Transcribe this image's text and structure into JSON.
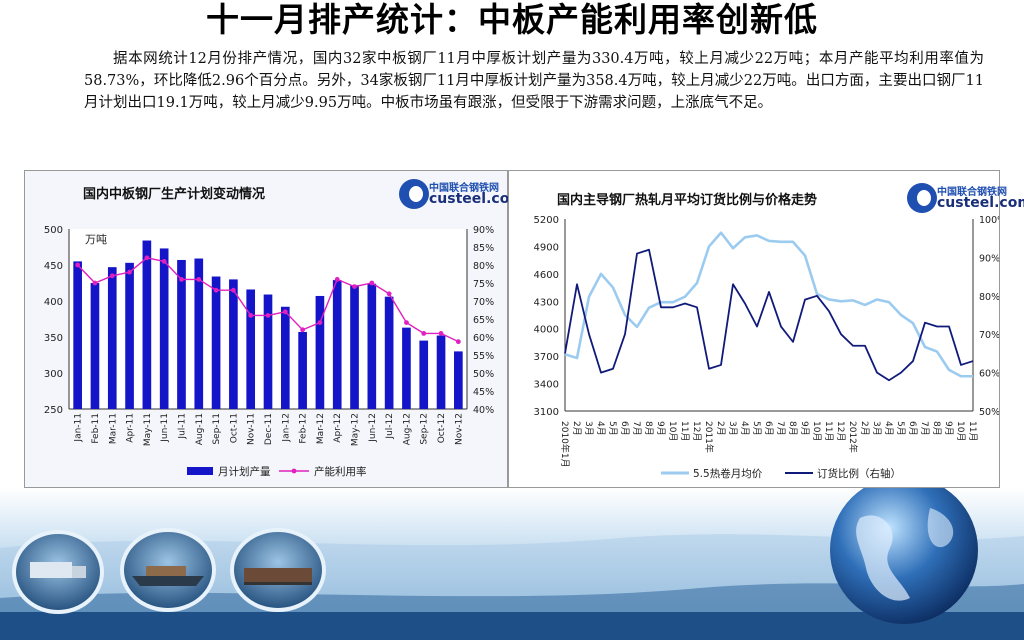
{
  "slide": {
    "title": "十一月排产统计：中板产能利用率创新低",
    "paragraph": "据本网统计12月份排产情况，国内32家中板钢厂11月中厚板计划产量为330.4万吨，较上月减少22万吨；本月产能平均利用率值为58.73%，环比降低2.96个百分点。另外，34家板钢厂11月中厚板计划产量为358.4万吨，较上月减少22万吨。出口方面，主要出口钢厂11月计划出口19.1万吨，较上月减少9.95万吨。中板市场虽有跟涨，但受限于下游需求问题，上涨底气不足。"
  },
  "logo": {
    "cn": "中国联合钢铁网",
    "en": "custeel.com"
  },
  "colors": {
    "bar": "#1414c8",
    "rate_line": "#e020c0",
    "price_line": "#9ccbf0",
    "order_line": "#101a7a"
  },
  "chart_data": [
    {
      "type": "bar",
      "title": "国内中板钢厂生产计划变动情况",
      "unit_label": "万吨",
      "categories": [
        "Jan-11",
        "Feb-11",
        "Mar-11",
        "Apr-11",
        "May-11",
        "Jun-11",
        "Jul-11",
        "Aug-11",
        "Sep-11",
        "Oct-11",
        "Nov-11",
        "Dec-11",
        "Jan-12",
        "Feb-12",
        "Mar-12",
        "Apr-12",
        "May-12",
        "Jun-12",
        "Jul-12",
        "Aug-12",
        "Sep-12",
        "Oct-12",
        "Nov-12"
      ],
      "series": [
        {
          "name": "月计划产量",
          "type": "bar",
          "axis": "left",
          "values": [
            455,
            425,
            447,
            453,
            484,
            473,
            457,
            459,
            434,
            430,
            416,
            409,
            392,
            357,
            407,
            429,
            422,
            424,
            406,
            363,
            345,
            352,
            330
          ]
        },
        {
          "name": "产能利用率",
          "type": "line",
          "axis": "right",
          "values": [
            80,
            75,
            77,
            78,
            82,
            81,
            76,
            76,
            73,
            73,
            66,
            66,
            67,
            62,
            64,
            76,
            74,
            75,
            72,
            64,
            61,
            61,
            58.7
          ]
        }
      ],
      "ylim_left": [
        250,
        500
      ],
      "yticks_left": [
        250,
        300,
        350,
        400,
        450,
        500
      ],
      "ylim_right": [
        40,
        90
      ],
      "yticks_right": [
        "40%",
        "45%",
        "50%",
        "55%",
        "60%",
        "65%",
        "70%",
        "75%",
        "80%",
        "85%",
        "90%"
      ],
      "legend_position": "bottom"
    },
    {
      "type": "line",
      "title": "国内主导钢厂热轧月平均订货比例与价格走势",
      "categories": [
        "2010年1月",
        "2月",
        "3月",
        "4月",
        "5月",
        "6月",
        "7月",
        "8月",
        "9月",
        "10月",
        "11月",
        "12月",
        "2011年",
        "2月",
        "3月",
        "4月",
        "5月",
        "6月",
        "7月",
        "8月",
        "9月",
        "10月",
        "11月",
        "12月",
        "2012年",
        "2月",
        "3月",
        "4月",
        "5月",
        "6月",
        "7月",
        "8月",
        "9月",
        "10月",
        "11月"
      ],
      "series": [
        {
          "name": "5.5热卷月均价",
          "axis": "left",
          "values": [
            3720,
            3680,
            4350,
            4600,
            4450,
            4150,
            4020,
            4230,
            4290,
            4290,
            4350,
            4500,
            4900,
            5050,
            4880,
            5000,
            5020,
            4960,
            4950,
            4950,
            4800,
            4380,
            4320,
            4300,
            4310,
            4260,
            4320,
            4290,
            4150,
            4060,
            3800,
            3750,
            3550,
            3480,
            3480
          ]
        },
        {
          "name": "订货比例（右轴）",
          "axis": "right",
          "values": [
            65,
            83,
            70,
            60,
            61,
            70,
            91,
            92,
            77,
            77,
            78,
            77,
            61,
            62,
            83,
            78,
            72,
            81,
            72,
            68,
            79,
            80,
            76,
            70,
            67,
            67,
            60,
            58,
            60,
            63,
            73,
            72,
            72,
            62,
            63
          ]
        }
      ],
      "ylim_left": [
        3100,
        5200
      ],
      "yticks_left": [
        3100,
        3400,
        3700,
        4000,
        4300,
        4600,
        4900,
        5200
      ],
      "ylim_right": [
        50,
        100
      ],
      "yticks_right": [
        "50%",
        "60%",
        "70%",
        "80%",
        "90%",
        "100%"
      ],
      "legend_position": "bottom"
    }
  ]
}
